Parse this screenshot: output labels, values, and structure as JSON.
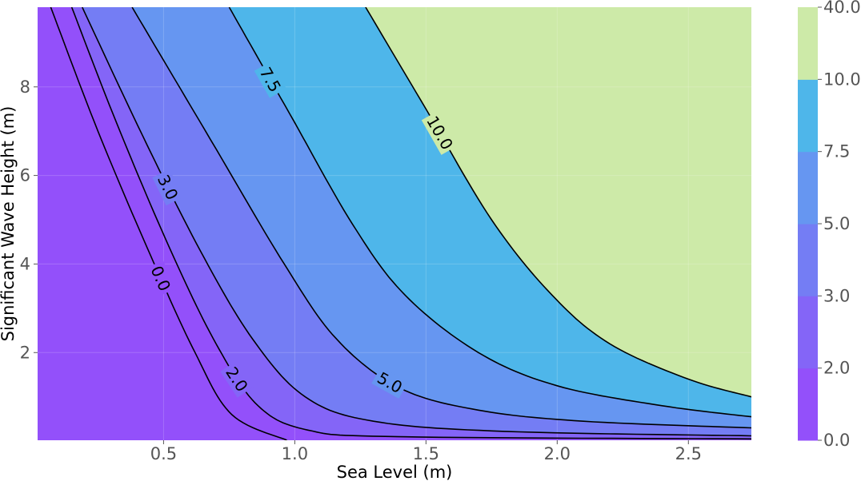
{
  "chart_data": {
    "type": "contour",
    "title": "",
    "xlabel": "Sea Level (m)",
    "ylabel": "Significant Wave Height (m)",
    "xlim": [
      0.02,
      2.74
    ],
    "ylim": [
      0.02,
      9.8
    ],
    "grid": true,
    "x_ticks": [
      0.5,
      1.0,
      1.5,
      2.0,
      2.5
    ],
    "x_tick_labels": [
      "0.5",
      "1.0",
      "1.5",
      "2.0",
      "2.5"
    ],
    "y_ticks": [
      2,
      4,
      6,
      8
    ],
    "y_tick_labels": [
      "2",
      "4",
      "6",
      "8"
    ],
    "contour_levels": [
      {
        "level": 0.0,
        "label": "0.0",
        "points": [
          [
            0.07,
            9.8
          ],
          [
            0.25,
            7.0
          ],
          [
            0.45,
            4.2
          ],
          [
            0.62,
            2.0
          ],
          [
            0.76,
            0.6
          ],
          [
            0.97,
            0.02
          ]
        ]
      },
      {
        "level": 2.0,
        "label": "2.0",
        "points": [
          [
            0.15,
            9.8
          ],
          [
            0.32,
            7.2
          ],
          [
            0.52,
            4.4
          ],
          [
            0.7,
            2.2
          ],
          [
            0.86,
            0.8
          ],
          [
            1.05,
            0.25
          ],
          [
            1.4,
            0.1
          ],
          [
            2.74,
            0.05
          ]
        ]
      },
      {
        "level": 3.0,
        "label": "3.0",
        "points": [
          [
            0.19,
            9.8
          ],
          [
            0.42,
            6.9
          ],
          [
            0.64,
            4.3
          ],
          [
            0.84,
            2.3
          ],
          [
            1.04,
            1.0
          ],
          [
            1.3,
            0.45
          ],
          [
            1.8,
            0.22
          ],
          [
            2.74,
            0.12
          ]
        ]
      },
      {
        "level": 5.0,
        "label": "5.0",
        "points": [
          [
            0.38,
            9.8
          ],
          [
            0.68,
            6.8
          ],
          [
            0.96,
            4.0
          ],
          [
            1.16,
            2.3
          ],
          [
            1.4,
            1.2
          ],
          [
            1.7,
            0.7
          ],
          [
            2.1,
            0.45
          ],
          [
            2.74,
            0.3
          ]
        ]
      },
      {
        "level": 7.5,
        "label": "7.5",
        "points": [
          [
            0.75,
            9.8
          ],
          [
            0.98,
            7.4
          ],
          [
            1.22,
            4.9
          ],
          [
            1.42,
            3.3
          ],
          [
            1.7,
            2.0
          ],
          [
            2.0,
            1.25
          ],
          [
            2.4,
            0.8
          ],
          [
            2.74,
            0.55
          ]
        ]
      },
      {
        "level": 10.0,
        "label": "10.0",
        "points": [
          [
            1.27,
            9.8
          ],
          [
            1.5,
            7.5
          ],
          [
            1.75,
            5.0
          ],
          [
            1.98,
            3.3
          ],
          [
            2.2,
            2.2
          ],
          [
            2.5,
            1.4
          ],
          [
            2.74,
            1.0
          ]
        ]
      }
    ],
    "bands": [
      {
        "from": 0.0,
        "to": 2.0,
        "color": "#9350fa"
      },
      {
        "from": 2.0,
        "to": 3.0,
        "color": "#8465f7"
      },
      {
        "from": 3.0,
        "to": 5.0,
        "color": "#747df4"
      },
      {
        "from": 5.0,
        "to": 7.5,
        "color": "#6696f1"
      },
      {
        "from": 7.5,
        "to": 10.0,
        "color": "#4eb6ea"
      },
      {
        "from": 10.0,
        "to": 40.0,
        "color": "#cdeaa8"
      }
    ],
    "colorbar": {
      "labels": [
        "0.0",
        "2.0",
        "3.0",
        "5.0",
        "7.5",
        "10.0",
        "40.0"
      ]
    }
  }
}
